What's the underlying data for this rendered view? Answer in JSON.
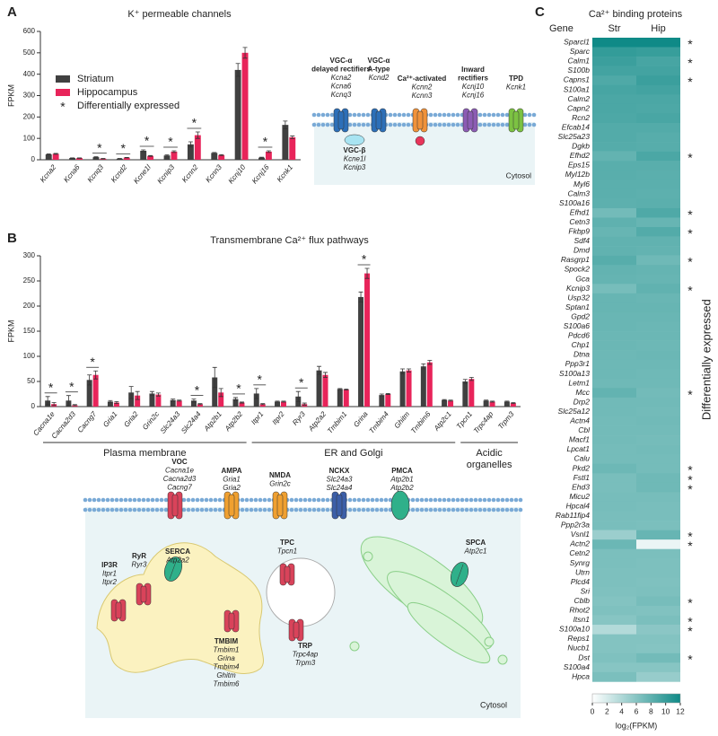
{
  "chart_data": [
    {
      "type": "bar",
      "panel": "A",
      "title": "K⁺ permeable channels",
      "y_label": "FPKM",
      "categories": [
        "Kcna2",
        "Kcna6",
        "Kcnq3",
        "Kcnd2",
        "Kcne1l",
        "Kcnip3",
        "Kcnn2",
        "Kcnn3",
        "Kcnj10",
        "Kcnj16",
        "Kcnk1"
      ],
      "series": [
        {
          "name": "Striatum",
          "color": "#404040",
          "values": [
            25,
            8,
            12,
            5,
            42,
            20,
            72,
            32,
            420,
            10,
            163
          ],
          "errors": [
            2,
            1,
            2,
            1,
            4,
            3,
            12,
            2,
            30,
            2,
            18
          ]
        },
        {
          "name": "Hippocampus",
          "color": "#e8245a",
          "values": [
            28,
            8,
            5,
            10,
            18,
            38,
            115,
            22,
            500,
            38,
            105
          ],
          "errors": [
            2,
            1,
            1,
            1,
            2,
            4,
            15,
            2,
            25,
            4,
            6
          ]
        }
      ],
      "significant": [
        false,
        false,
        true,
        true,
        true,
        true,
        true,
        false,
        false,
        true,
        false
      ],
      "significance_marker": "*",
      "significance_label": "Differentially expressed",
      "ylim": [
        0,
        600
      ],
      "yticks": [
        0,
        100,
        200,
        300,
        400,
        500,
        600
      ],
      "legend": true
    },
    {
      "type": "bar",
      "panel": "B",
      "title": "Transmembrane Ca²⁺ flux pathways",
      "y_label": "FPKM",
      "categories": [
        "Cacna1e",
        "Cacna2d3",
        "Cacng7",
        "Gria1",
        "Gria2",
        "Grin2c",
        "Slc24a3",
        "Slc24a4",
        "Atp2b1",
        "Atp2b2",
        "Itpr1",
        "Itpr2",
        "Ryr3",
        "Atp2a2",
        "Tmbim1",
        "Grina",
        "Tmbim4",
        "Ghitm",
        "Tmbim6",
        "Atp2c1",
        "Tpcn1",
        "Trpc4ap",
        "Trpm3"
      ],
      "series": [
        {
          "name": "Striatum",
          "color": "#404040",
          "values": [
            12,
            12,
            53,
            10,
            28,
            26,
            13,
            12,
            58,
            15,
            26,
            10,
            20,
            72,
            35,
            218,
            23,
            70,
            80,
            13,
            50,
            12,
            10
          ],
          "errors": [
            8,
            10,
            10,
            2,
            12,
            4,
            2,
            3,
            20,
            3,
            10,
            1,
            10,
            8,
            1,
            10,
            2,
            5,
            5,
            1,
            4,
            1,
            1
          ]
        },
        {
          "name": "Hippocampus",
          "color": "#e8245a",
          "values": [
            5,
            3,
            63,
            8,
            22,
            24,
            12,
            5,
            28,
            8,
            5,
            10,
            5,
            63,
            34,
            265,
            25,
            72,
            88,
            12,
            55,
            10,
            7
          ],
          "errors": [
            3,
            1,
            8,
            2,
            8,
            3,
            1,
            1,
            8,
            1,
            1,
            1,
            2,
            5,
            1,
            10,
            1,
            3,
            4,
            1,
            3,
            1,
            1
          ]
        }
      ],
      "significant": [
        true,
        true,
        true,
        false,
        false,
        false,
        false,
        true,
        false,
        true,
        true,
        false,
        true,
        false,
        false,
        true,
        false,
        false,
        false,
        false,
        false,
        false,
        false
      ],
      "significance_marker": "*",
      "groups": [
        {
          "lines": [
            "Plasma membrane"
          ],
          "size": 10
        },
        {
          "lines": [
            "ER and Golgi"
          ],
          "size": 10
        },
        {
          "lines": [
            "Acidic",
            "organelles"
          ],
          "size": 3
        }
      ],
      "ylim": [
        0,
        300
      ],
      "yticks": [
        0,
        50,
        100,
        150,
        200,
        250,
        300
      ],
      "legend": false
    },
    {
      "type": "heatmap",
      "panel": "C",
      "title": "Ca²⁺ binding proteins",
      "row_header": "Gene",
      "columns": [
        "Str",
        "Hip"
      ],
      "rows": [
        "Sparcl1",
        "Sparc",
        "Calm1",
        "S100b",
        "Capns1",
        "S100a1",
        "Calm2",
        "Capn2",
        "Rcn2",
        "Efcab14",
        "Slc25a23",
        "Dgkb",
        "Efhd2",
        "Eps15",
        "Myl12b",
        "Myl6",
        "Calm3",
        "S100a16",
        "Efhd1",
        "Cetn3",
        "Fkbp9",
        "Sdf4",
        "Dmd",
        "Rasgrp1",
        "Spock2",
        "Gca",
        "Kcnip3",
        "Usp32",
        "Sptan1",
        "Gpd2",
        "S100a6",
        "Pdcd6",
        "Chp1",
        "Dtna",
        "Ppp3r1",
        "S100a13",
        "Letm1",
        "Mcc",
        "Drp2",
        "Slc25a12",
        "Actn4",
        "Cbl",
        "Macf1",
        "Lpcat1",
        "Calu",
        "Pkd2",
        "Fstl1",
        "Ehd3",
        "Micu2",
        "Hpcal4",
        "Rab11fip4",
        "Ppp2r3a",
        "Vsnl1",
        "Actn2",
        "Cetn2",
        "Synrg",
        "Utrn",
        "Plcd4",
        "Sri",
        "Cblb",
        "Rhot2",
        "Itsn1",
        "S100a10",
        "Reps1",
        "Nucb1",
        "Dst",
        "S100a4",
        "Hpca"
      ],
      "values": [
        [
          12,
          12
        ],
        [
          10.2,
          10
        ],
        [
          9.8,
          9.2
        ],
        [
          9.4,
          9.4
        ],
        [
          8.8,
          9.8
        ],
        [
          9.2,
          9.4
        ],
        [
          9,
          9
        ],
        [
          9,
          8.9
        ],
        [
          8.9,
          9.1
        ],
        [
          8.6,
          8.6
        ],
        [
          8.6,
          8.4
        ],
        [
          8.5,
          8.4
        ],
        [
          7.8,
          9
        ],
        [
          8.3,
          8.3
        ],
        [
          8.3,
          8.2
        ],
        [
          8.2,
          8.2
        ],
        [
          8.2,
          8.1
        ],
        [
          8.1,
          8.2
        ],
        [
          7,
          8.8
        ],
        [
          8,
          7.6
        ],
        [
          7.6,
          8.6
        ],
        [
          7.9,
          7.9
        ],
        [
          7.9,
          7.8
        ],
        [
          8.4,
          7.2
        ],
        [
          7.8,
          7.7
        ],
        [
          7.7,
          7.6
        ],
        [
          6.8,
          7.9
        ],
        [
          7.6,
          7.5
        ],
        [
          7.6,
          7.6
        ],
        [
          7.5,
          7.5
        ],
        [
          7.5,
          7.4
        ],
        [
          7.4,
          7.4
        ],
        [
          7.4,
          7.3
        ],
        [
          7.3,
          7.4
        ],
        [
          7.3,
          7.3
        ],
        [
          7.3,
          7.2
        ],
        [
          7.2,
          7.2
        ],
        [
          7.8,
          7
        ],
        [
          7.1,
          7.1
        ],
        [
          7.1,
          7
        ],
        [
          7,
          7.1
        ],
        [
          7,
          7
        ],
        [
          7,
          6.9
        ],
        [
          6.9,
          7
        ],
        [
          6.9,
          6.9
        ],
        [
          7.3,
          6.9
        ],
        [
          6.7,
          7.2
        ],
        [
          6.7,
          7.2
        ],
        [
          6.8,
          6.8
        ],
        [
          6.8,
          6.7
        ],
        [
          6.7,
          6.7
        ],
        [
          6.7,
          6.6
        ],
        [
          5,
          7.6
        ],
        [
          7.4,
          1
        ],
        [
          6.6,
          6.6
        ],
        [
          6.6,
          6.5
        ],
        [
          6.5,
          6.5
        ],
        [
          6.5,
          6.4
        ],
        [
          6.4,
          6.5
        ],
        [
          6.2,
          6.8
        ],
        [
          6.4,
          6.3
        ],
        [
          6,
          6.6
        ],
        [
          3.8,
          5.8
        ],
        [
          6.2,
          6.2
        ],
        [
          6.2,
          6.1
        ],
        [
          6.4,
          7
        ],
        [
          6,
          6
        ],
        [
          6.6,
          5.2
        ]
      ],
      "significant": [
        true,
        false,
        true,
        false,
        true,
        false,
        false,
        false,
        false,
        false,
        false,
        false,
        true,
        false,
        false,
        false,
        false,
        false,
        true,
        false,
        true,
        false,
        false,
        true,
        false,
        false,
        true,
        false,
        false,
        false,
        false,
        false,
        false,
        false,
        false,
        false,
        false,
        true,
        false,
        false,
        false,
        false,
        false,
        false,
        false,
        true,
        true,
        true,
        false,
        false,
        false,
        false,
        true,
        true,
        false,
        false,
        false,
        false,
        false,
        true,
        false,
        true,
        true,
        false,
        false,
        true,
        false,
        false
      ],
      "significance_marker": "*",
      "side_label": "Differentially expressed",
      "colors": [
        "#ffffff",
        "#0f8a87"
      ],
      "zlim": [
        0,
        12
      ],
      "zticks": [
        0,
        2,
        4,
        6,
        8,
        10,
        12
      ],
      "colorbar_label": "log₂(FPKM)"
    }
  ],
  "diagrams": [
    {
      "compartment": "Cytosol",
      "items": [
        {
          "lines": [
            "VGC-α",
            "delayed rectifiers"
          ],
          "genes": [
            "Kcna2",
            "Kcna6",
            "Kcnq3"
          ]
        },
        {
          "lines": [
            "VGC-α",
            "A-type"
          ],
          "genes": [
            "Kcnd2"
          ]
        },
        {
          "lines": [
            "Ca²⁺-activated"
          ],
          "genes": [
            "Kcnn2",
            "Kcnn3"
          ]
        },
        {
          "lines": [
            "Inward",
            "rectifiers"
          ],
          "genes": [
            "Kcnj10",
            "Kcnj16"
          ]
        },
        {
          "lines": [
            "TPD"
          ],
          "genes": [
            "Kcnk1"
          ]
        },
        {
          "lines": [
            "VGC-β"
          ],
          "genes": [
            "Kcne1l",
            "Kcnip3"
          ]
        }
      ]
    },
    {
      "compartment": "Cytosol",
      "items": [
        {
          "lines": [
            "VOC"
          ],
          "genes": [
            "Cacna1e",
            "Cacna2d3",
            "Cacng7"
          ]
        },
        {
          "lines": [
            "AMPA"
          ],
          "genes": [
            "Gria1",
            "Gria2"
          ]
        },
        {
          "lines": [
            "NMDA"
          ],
          "genes": [
            "Grin2c"
          ]
        },
        {
          "lines": [
            "NCKX"
          ],
          "genes": [
            "Slc24a3",
            "Slc24a4"
          ]
        },
        {
          "lines": [
            "PMCA"
          ],
          "genes": [
            "Atp2b1",
            "Atp2b2"
          ]
        },
        {
          "lines": [
            "SERCA"
          ],
          "genes": [
            "Atp2a2"
          ]
        },
        {
          "lines": [
            "RyR"
          ],
          "genes": [
            "Ryr3"
          ]
        },
        {
          "lines": [
            "IP3R"
          ],
          "genes": [
            "Itpr1",
            "Itpr2"
          ]
        },
        {
          "lines": [
            "TMBIM"
          ],
          "genes": [
            "Tmbim1",
            "Grina",
            "Tmbim4",
            "Ghitm",
            "Tmbim6"
          ]
        },
        {
          "lines": [
            "TPC"
          ],
          "genes": [
            "Tpcn1"
          ]
        },
        {
          "lines": [
            "TRP"
          ],
          "genes": [
            "Trpc4ap",
            "Trpm3"
          ]
        },
        {
          "lines": [
            "SPCA"
          ],
          "genes": [
            "Atp2c1"
          ]
        }
      ]
    }
  ]
}
